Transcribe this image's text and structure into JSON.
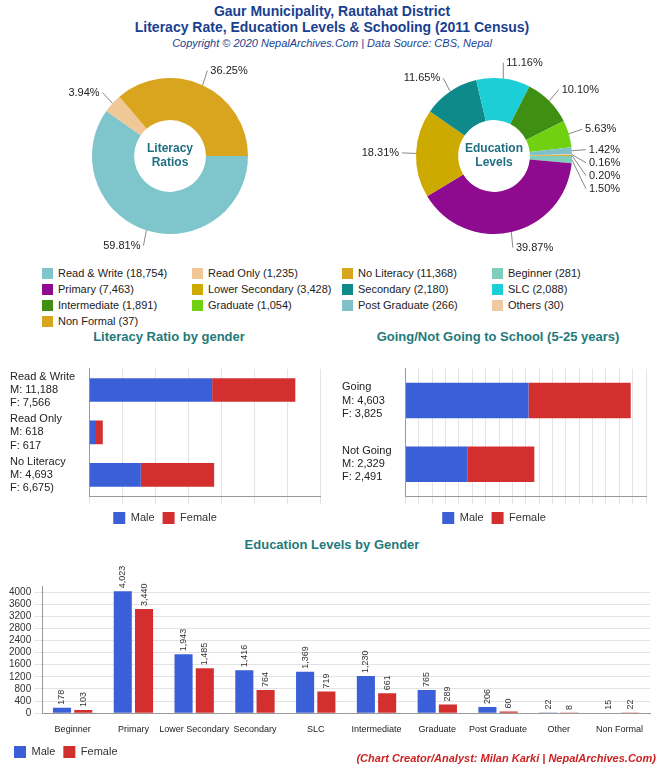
{
  "header": {
    "title": [
      "Gaur Municipality, Rautahat District",
      "Literacy Rate, Education Levels & Schooling (2011 Census)"
    ],
    "subtitle": "Copyright © 2020 NepalArchives.Com | Data Source: CBS, Nepal"
  },
  "footer": "(Chart Creator/Analyst: Milan Karki | NepalArchives.Com)",
  "chart_data": [
    {
      "type": "doughnut",
      "title": "Literacy Ratios",
      "categories": [
        "Read & Write (18,754)",
        "Read Only (1,235)",
        "No Literacy (11,368)"
      ],
      "values": [
        59.81,
        3.94,
        36.25
      ],
      "value_labels": [
        "59.81%",
        "3.94%",
        "36.25%"
      ],
      "colors": [
        "#7fc6cc",
        "#f0c898",
        "#d9a51e"
      ],
      "data_labels": true,
      "legend": "bottom"
    },
    {
      "type": "doughnut",
      "title": "Education Levels",
      "categories": [
        "Beginner (281)",
        "Primary (7,463)",
        "Lower Secondary (3,428)",
        "Secondary (2,180)",
        "SLC (2,088)",
        "Intermediate (1,891)",
        "Graduate (1,054)",
        "Post Graduate (266)",
        "Others (30)",
        "Non Formal (37)"
      ],
      "values": [
        1.5,
        39.87,
        18.31,
        11.65,
        11.16,
        10.1,
        5.63,
        1.42,
        0.16,
        0.2
      ],
      "value_labels": [
        "1.50%",
        "39.87%",
        "18.31%",
        "11.65%",
        "11.16%",
        "10.10%",
        "5.63%",
        "1.42%",
        "0.16%",
        "0.20%"
      ],
      "colors": [
        "#7fcdbb",
        "#8e0a8e",
        "#ccaa00",
        "#0e8a8a",
        "#1ccfd6",
        "#3f8f13",
        "#6fd110",
        "#80c0c8",
        "#efc9a0",
        "#d9a51e"
      ],
      "data_labels": true,
      "legend": "bottom"
    },
    {
      "type": "bar",
      "title": "Literacy Ratio by gender",
      "orientation": "horizontal",
      "stacked": true,
      "categories": [
        [
          "Read & Write",
          "M: 11,188",
          "F: 7,566"
        ],
        [
          "Read Only",
          "M: 618",
          "F: 617"
        ],
        [
          "No Literacy",
          "M: 4,693",
          "F: 6,675)"
        ]
      ],
      "series": [
        {
          "name": "Male",
          "color": "#3a5fd6",
          "values": [
            11188,
            618,
            4693
          ]
        },
        {
          "name": "Female",
          "color": "#d32f2f",
          "values": [
            7566,
            617,
            6675
          ]
        }
      ],
      "xlim": [
        0,
        21000
      ],
      "xticks": [
        0,
        3000,
        6000,
        9000,
        12000,
        15000,
        18000,
        21000
      ],
      "grid": true,
      "legend": "bottom",
      "tick_labels": "y"
    },
    {
      "type": "bar",
      "title": "Going/Not Going to School (5-25 years)",
      "orientation": "horizontal",
      "stacked": true,
      "categories": [
        [
          "Going",
          "M: 4,603",
          "F: 3,825"
        ],
        [
          "Not Going",
          "M: 2,329",
          "F: 2,491"
        ]
      ],
      "series": [
        {
          "name": "Male",
          "color": "#3a5fd6",
          "values": [
            4603,
            2329
          ]
        },
        {
          "name": "Female",
          "color": "#d32f2f",
          "values": [
            3825,
            2491
          ]
        }
      ],
      "xlim": [
        0,
        9000
      ],
      "xticks": [
        0,
        500,
        1000,
        1500,
        2000,
        2500,
        3000,
        3500,
        4000,
        4500,
        5000,
        5500,
        6000,
        6500,
        7000,
        7500,
        8000,
        8500,
        9000
      ],
      "grid": true,
      "legend": "bottom",
      "tick_labels": "y"
    },
    {
      "type": "bar",
      "title": "Education Levels by Gender",
      "categories": [
        "Beginner",
        "Primary",
        "Lower Secondary",
        "Secondary",
        "SLC",
        "Intermediate",
        "Graduate",
        "Post Graduate",
        "Other",
        "Non Formal"
      ],
      "series": [
        {
          "name": "Male",
          "color": "#3a5fd6",
          "values": [
            178,
            4023,
            1943,
            1416,
            1369,
            1230,
            765,
            206,
            22,
            15
          ],
          "value_labels": [
            "178",
            "4,023",
            "1,943",
            "1,416",
            "1,369",
            "1,230",
            "765",
            "206",
            "22",
            "15"
          ]
        },
        {
          "name": "Female",
          "color": "#d32f2f",
          "values": [
            103,
            3440,
            1485,
            764,
            719,
            661,
            289,
            60,
            8,
            22
          ],
          "value_labels": [
            "103",
            "3,440",
            "1,485",
            "764",
            "719",
            "661",
            "289",
            "60",
            "8",
            "22"
          ]
        }
      ],
      "ylim": [
        0,
        4200
      ],
      "yticks": [
        0,
        400,
        800,
        1200,
        1600,
        2000,
        2400,
        2800,
        3200,
        3600,
        4000
      ],
      "grid": true,
      "legend": "bottom-left",
      "data_labels": true
    }
  ]
}
